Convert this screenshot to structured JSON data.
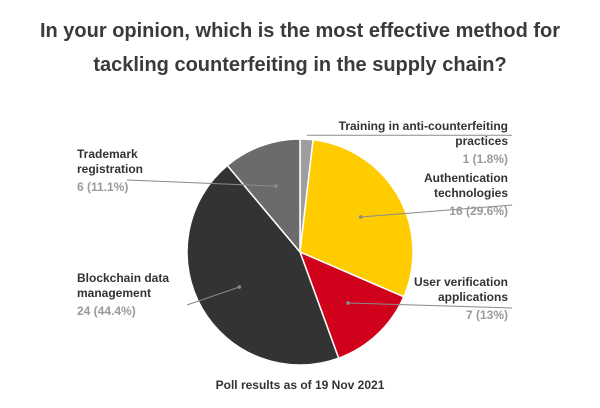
{
  "chart_data": {
    "type": "pie",
    "title": "In your opinion, which is the most effective method for tackling counterfeiting in the supply chain?",
    "title_lines": [
      "In your opinion, which is the most effective method for",
      "tackling counterfeiting in the supply chain?"
    ],
    "footnote": "Poll results as of 19 Nov 2021",
    "slices": [
      {
        "label": "Training in anti-counterfeiting practices",
        "value": 1,
        "value_label": "1 (1.8%)",
        "color": "#9e9e9e"
      },
      {
        "label": "Authentication technologies",
        "value": 16,
        "value_label": "16 (29.6%)",
        "color": "#ffcc00"
      },
      {
        "label": "User verification applications",
        "value": 7,
        "value_label": "7 (13%)",
        "color": "#d0021b"
      },
      {
        "label": "Blockchain data management",
        "value": 24,
        "value_label": "24 (44.4%)",
        "color": "#333333"
      },
      {
        "label": "Trademark registration",
        "value": 6,
        "value_label": "6 (11.1%)",
        "color": "#6b6b6b"
      }
    ]
  }
}
